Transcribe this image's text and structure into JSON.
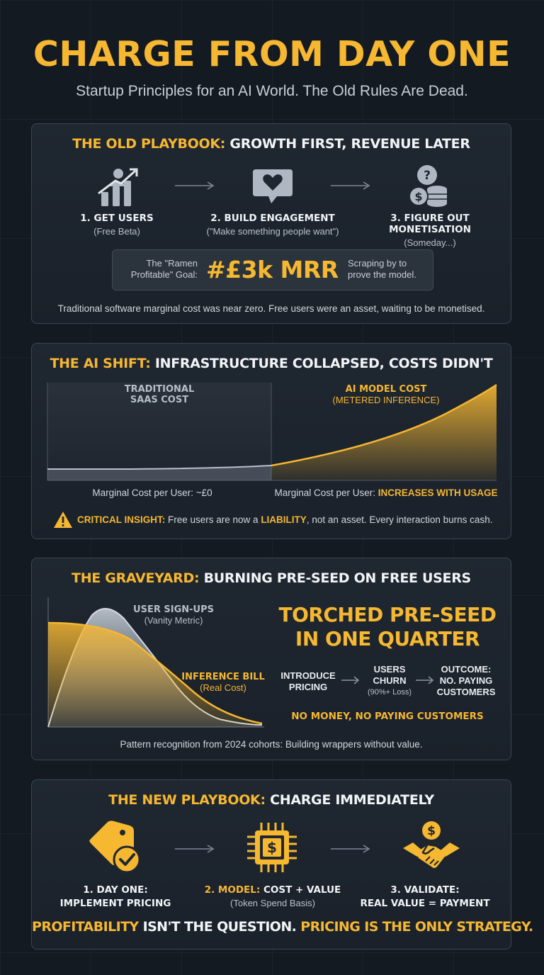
{
  "header": {
    "title": "CHARGE FROM DAY ONE",
    "subtitle": "Startup Principles for an AI World. The Old Rules Are Dead."
  },
  "old_playbook": {
    "title_accent": "THE OLD PLAYBOOK:",
    "title_rest": " GROWTH FIRST, REVENUE LATER",
    "steps": [
      {
        "title": "1. GET USERS",
        "sub": "(Free Beta)",
        "icon": "user-growth-icon"
      },
      {
        "title": "2. BUILD ENGAGEMENT",
        "sub": "(\"Make something people want\")",
        "icon": "heart-chat-icon"
      },
      {
        "title": "3. FIGURE OUT MONETISATION",
        "sub": "(Someday...)",
        "icon": "question-coins-icon"
      }
    ],
    "goal_label": "The \"Ramen Profitable\" Goal:",
    "goal_value": "#£3k MRR",
    "goal_note": "Scraping by to prove the model.",
    "footer": "Traditional software marginal cost was near zero. Free users were an asset, waiting to be monetised."
  },
  "ai_shift": {
    "title_accent": "THE AI SHIFT:",
    "title_rest": " INFRASTRUCTURE COLLAPSED, COSTS DIDN'T",
    "left_label_1": "TRADITIONAL",
    "left_label_2": "SAAS COST",
    "right_label_1": "AI MODEL COST",
    "right_label_2": "(METERED INFERENCE)",
    "left_caption": "Marginal Cost per User: ~£0",
    "right_caption_prefix": "Marginal Cost per User: ",
    "right_caption_accent": "INCREASES WITH USAGE",
    "insight_accent": "CRITICAL INSIGHT:",
    "insight_text_1": " Free users are now a ",
    "insight_liability": "LIABILITY",
    "insight_text_2": ", not an asset. Every interaction burns cash."
  },
  "graveyard": {
    "title_accent": "THE GRAVEYARD:",
    "title_rest": " BURNING PRE-SEED ON FREE USERS",
    "signups_label": "USER SIGN-UPS",
    "signups_sub": "(Vanity Metric)",
    "bill_label": "INFERENCE BILL",
    "bill_sub": "(Real Cost)",
    "headline_1": "TORCHED PRE-SEED",
    "headline_2": "IN ONE QUARTER",
    "flow": [
      {
        "lines": [
          "INTRODUCE",
          "PRICING"
        ],
        "sub": ""
      },
      {
        "lines": [
          "USERS",
          "CHURN"
        ],
        "sub": "(90%+ Loss)"
      },
      {
        "lines": [
          "OUTCOME:",
          "NO. PAYING",
          "CUSTOMERS"
        ],
        "sub": ""
      }
    ],
    "no_money": "NO MONEY, NO PAYING CUSTOMERS",
    "footer": "Pattern recognition from 2024 cohorts: Building wrappers without value."
  },
  "new_playbook": {
    "title_accent": "THE NEW PLAYBOOK:",
    "title_rest": " CHARGE IMMEDIATELY",
    "steps": [
      {
        "accent": "1. DAY ONE:",
        "rest": "IMPLEMENT PRICING",
        "icon": "price-tag-check-icon"
      },
      {
        "accent": "2. MODEL:",
        "rest_inline": " COST + VALUE",
        "sub": "(Token Spend Basis)",
        "icon": "chip-dollar-icon"
      },
      {
        "accent": "3. VALIDATE:",
        "rest": "REAL VALUE = PAYMENT",
        "icon": "handshake-dollar-icon"
      }
    ],
    "bottom_accent_1": "PROFITABILITY",
    "bottom_rest_1": " ISN'T THE QUESTION. ",
    "bottom_accent_2": "PRICING IS THE ONLY STRATEGY."
  },
  "colors": {
    "accent": "#f6b731",
    "background": "#141a22",
    "panel": "#1f2731",
    "warning": "#f6b731"
  }
}
